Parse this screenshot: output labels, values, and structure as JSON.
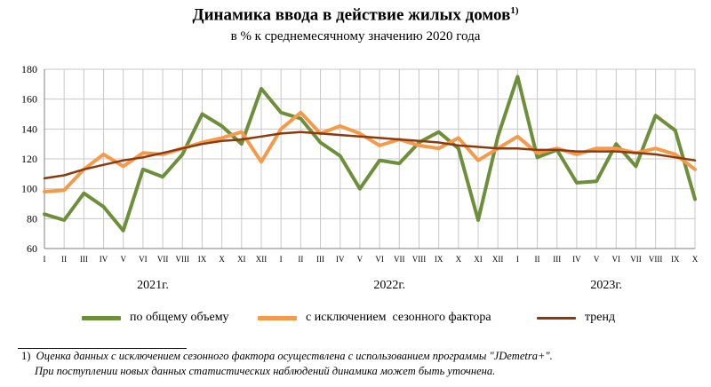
{
  "title": "Динамика ввода в действие жилых домов",
  "title_note": "1)",
  "subtitle": "в % к среднемесячному значению 2020 года",
  "footnote": {
    "mark": "1)",
    "line1": "Оценка данных с исключением сезонного фактора осуществлена с использованием программы \"JDemetra+\".",
    "line2": "При поступлении новых данных статистических наблюдений динамика может быть уточнена."
  },
  "colors": {
    "total": "#6d8f3a",
    "seasonal": "#f59a4a",
    "trend": "#8b3a0f",
    "grid": "#c8c8c8",
    "axis": "#7f7f7f"
  },
  "chart_data": {
    "type": "line",
    "x": [
      "I",
      "II",
      "III",
      "IV",
      "V",
      "VI",
      "VII",
      "VIII",
      "IX",
      "X",
      "XI",
      "XII",
      "I",
      "II",
      "III",
      "IV",
      "V",
      "VI",
      "VII",
      "VIII",
      "IX",
      "X",
      "XI",
      "XII",
      "I",
      "II",
      "III",
      "IV",
      "V",
      "VI",
      "VII",
      "VIII",
      "IX",
      "X"
    ],
    "year_labels": [
      {
        "label": "2021г.",
        "center_index": 5.5
      },
      {
        "label": "2022г.",
        "center_index": 17.5
      },
      {
        "label": "2023г.",
        "center_index": 28.5
      }
    ],
    "ylim": [
      60,
      180
    ],
    "yticks": [
      60,
      80,
      100,
      120,
      140,
      160,
      180
    ],
    "grid": true,
    "legend_position": "bottom",
    "series": [
      {
        "name": "по общему объему",
        "color": "#6d8f3a",
        "values": [
          83,
          79,
          97,
          88,
          72,
          113,
          108,
          123,
          150,
          142,
          130,
          167,
          151,
          147,
          131,
          122,
          100,
          119,
          117,
          131,
          138,
          127,
          79,
          135,
          175,
          121,
          126,
          104,
          105,
          130,
          115,
          149,
          139,
          93
        ]
      },
      {
        "name": "с исключением  сезонного фактора",
        "color": "#f59a4a",
        "values": [
          98,
          99,
          113,
          123,
          115,
          124,
          123,
          127,
          131,
          134,
          138,
          118,
          140,
          151,
          137,
          142,
          137,
          129,
          133,
          129,
          127,
          134,
          119,
          127,
          135,
          124,
          127,
          123,
          127,
          127,
          124,
          127,
          123,
          113
        ]
      },
      {
        "name": "тренд",
        "color": "#8b3a0f",
        "values": [
          107,
          109,
          113,
          116,
          119,
          121,
          124,
          127,
          130,
          132,
          133,
          135,
          137,
          138,
          137,
          136,
          135,
          134,
          133,
          132,
          131,
          129,
          128,
          127,
          127,
          126,
          126,
          125,
          125,
          125,
          124,
          123,
          121,
          119
        ]
      }
    ]
  }
}
